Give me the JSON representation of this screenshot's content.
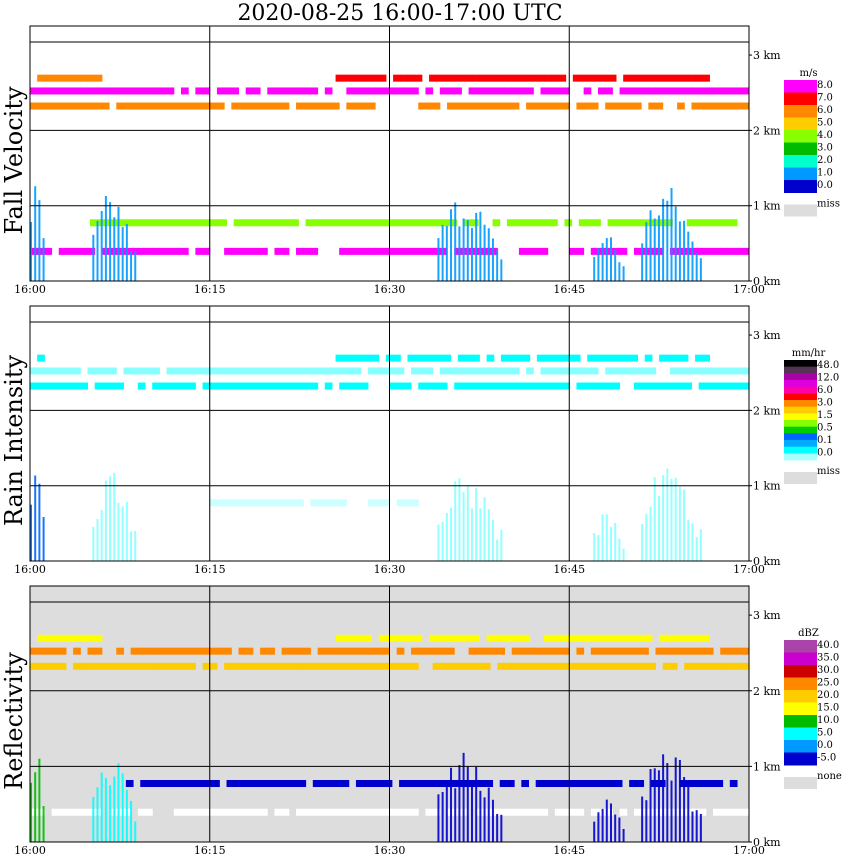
{
  "title": "2020-08-25   16:00-17:00 UTC",
  "chart_data": [
    {
      "type": "heatmap",
      "ylabel": "Fall Velocity",
      "x_ticks": [
        "16:00",
        "16:15",
        "16:30",
        "16:45",
        "17:00"
      ],
      "y_ticks": [
        "0 km",
        "1 km",
        "2 km",
        "3 km"
      ],
      "ylim_km": [
        0,
        3.2
      ],
      "grid": true,
      "colorbar": {
        "unit": "m/s",
        "labels": [
          "8.0",
          "7.0",
          "6.0",
          "5.0",
          "4.0",
          "3.0",
          "2.0",
          "1.0",
          "0.0"
        ],
        "colors": [
          "#ff00ff",
          "#ff0000",
          "#ff8800",
          "#ffcc00",
          "#88ff00",
          "#00bb00",
          "#00ffcc",
          "#0099ff",
          "#0000cc"
        ],
        "miss_label": "miss",
        "miss_color": "#dddddd"
      },
      "bands": [
        {
          "y_km": 2.7,
          "start_min": 0,
          "end_min": 5.5,
          "color": "#ff8800"
        },
        {
          "y_km": 2.7,
          "start_min": 25.5,
          "end_min": 56.5,
          "color": "#ff0000"
        },
        {
          "y_km": 2.53,
          "start_min": 0,
          "end_min": 60,
          "color": "#ff00ff"
        },
        {
          "y_km": 2.33,
          "start_min": 0,
          "end_min": 60,
          "color": "#ff8800"
        },
        {
          "y_km": 0.78,
          "start_min": 5,
          "end_min": 59,
          "color": "#88ff00"
        },
        {
          "y_km": 0.4,
          "start_min": 0,
          "end_min": 60,
          "color": "#ff00ff"
        }
      ],
      "echoes": [
        {
          "start_min": 0,
          "end_min": 1.2,
          "top_km": 1.5,
          "color": "#0099ff"
        },
        {
          "start_min": 5.2,
          "end_min": 9,
          "top_km": 1.2,
          "color": "#0099ff"
        },
        {
          "start_min": 34,
          "end_min": 39.5,
          "top_km": 1.2,
          "color": "#0099ff"
        },
        {
          "start_min": 47,
          "end_min": 49.5,
          "top_km": 0.7,
          "color": "#0099ff"
        },
        {
          "start_min": 51,
          "end_min": 56,
          "top_km": 1.3,
          "color": "#0099ff"
        }
      ]
    },
    {
      "type": "heatmap",
      "ylabel": "Rain Intensity",
      "x_ticks": [
        "16:00",
        "16:15",
        "16:30",
        "16:45",
        "17:00"
      ],
      "y_ticks": [
        "0 km",
        "1 km",
        "2 km",
        "3 km"
      ],
      "ylim_km": [
        0,
        3.2
      ],
      "grid": true,
      "colorbar": {
        "unit": "mm/hr",
        "labels": [
          "48.0",
          "12.0",
          "6.0",
          "3.0",
          "1.5",
          "0.5",
          "0.1",
          "0.0"
        ],
        "colors": [
          "#000000",
          "#553355",
          "#aa00aa",
          "#dd00dd",
          "#ff00aa",
          "#ff0000",
          "#ff8800",
          "#ffcc00",
          "#ffff00",
          "#88ff00",
          "#00cc00",
          "#0066ff",
          "#00aaff",
          "#00ffff",
          "#aaffff"
        ],
        "miss_label": "miss",
        "miss_color": "#dddddd"
      },
      "bands": [
        {
          "y_km": 2.7,
          "start_min": 0,
          "end_min": 1,
          "color": "#00ffff"
        },
        {
          "y_km": 2.7,
          "start_min": 25.5,
          "end_min": 56.5,
          "color": "#00ffff"
        },
        {
          "y_km": 2.53,
          "start_min": 0,
          "end_min": 60,
          "color": "#88ffff"
        },
        {
          "y_km": 2.33,
          "start_min": 0,
          "end_min": 60,
          "color": "#00ffff"
        },
        {
          "y_km": 0.78,
          "start_min": 15,
          "end_min": 33,
          "color": "#ccffff"
        }
      ],
      "echoes": [
        {
          "start_min": 0,
          "end_min": 1.2,
          "top_km": 1.5,
          "color": "#0066ff"
        },
        {
          "start_min": 5.2,
          "end_min": 9,
          "top_km": 1.2,
          "color": "#88ffff"
        },
        {
          "start_min": 34,
          "end_min": 39.5,
          "top_km": 1.2,
          "color": "#88ffff"
        },
        {
          "start_min": 47,
          "end_min": 49.5,
          "top_km": 0.7,
          "color": "#88ffff"
        },
        {
          "start_min": 51,
          "end_min": 56,
          "top_km": 1.3,
          "color": "#88ffff"
        }
      ]
    },
    {
      "type": "heatmap",
      "ylabel": "Reflectivity",
      "x_ticks": [
        "16:00",
        "16:15",
        "16:30",
        "16:45",
        "17:00"
      ],
      "y_ticks": [
        "0 km",
        "1 km",
        "2 km",
        "3 km"
      ],
      "ylim_km": [
        0,
        3.2
      ],
      "grid": true,
      "background": "#dddddd",
      "colorbar": {
        "unit": "dBZ",
        "labels": [
          "40.0",
          "35.0",
          "30.0",
          "25.0",
          "20.0",
          "15.0",
          "10.0",
          "5.0",
          "0.0",
          "-5.0"
        ],
        "colors": [
          "#aa44aa",
          "#cc00cc",
          "#cc0000",
          "#ff8800",
          "#ffcc00",
          "#ffff00",
          "#00bb00",
          "#00ffff",
          "#0099ff",
          "#0000cc"
        ],
        "miss_label": "none",
        "miss_color": "#dddddd"
      },
      "bands": [
        {
          "y_km": 2.7,
          "start_min": 0,
          "end_min": 5.5,
          "color": "#ffff00"
        },
        {
          "y_km": 2.7,
          "start_min": 25.5,
          "end_min": 56.5,
          "color": "#ffff00"
        },
        {
          "y_km": 2.53,
          "start_min": 0,
          "end_min": 60,
          "color": "#ff8800"
        },
        {
          "y_km": 2.33,
          "start_min": 0,
          "end_min": 60,
          "color": "#ffcc00"
        },
        {
          "y_km": 0.78,
          "start_min": 8,
          "end_min": 59,
          "color": "#0000cc"
        },
        {
          "y_km": 0.4,
          "start_min": 0,
          "end_min": 60,
          "color": "#ffffff"
        }
      ],
      "echoes": [
        {
          "start_min": 0,
          "end_min": 1.2,
          "top_km": 1.5,
          "color": "#00bb00"
        },
        {
          "start_min": 5.2,
          "end_min": 9,
          "top_km": 1.2,
          "color": "#00ffff"
        },
        {
          "start_min": 34,
          "end_min": 39.5,
          "top_km": 1.2,
          "color": "#0000cc"
        },
        {
          "start_min": 47,
          "end_min": 49.5,
          "top_km": 0.7,
          "color": "#0000cc"
        },
        {
          "start_min": 51,
          "end_min": 56,
          "top_km": 1.3,
          "color": "#0000cc"
        }
      ]
    }
  ]
}
